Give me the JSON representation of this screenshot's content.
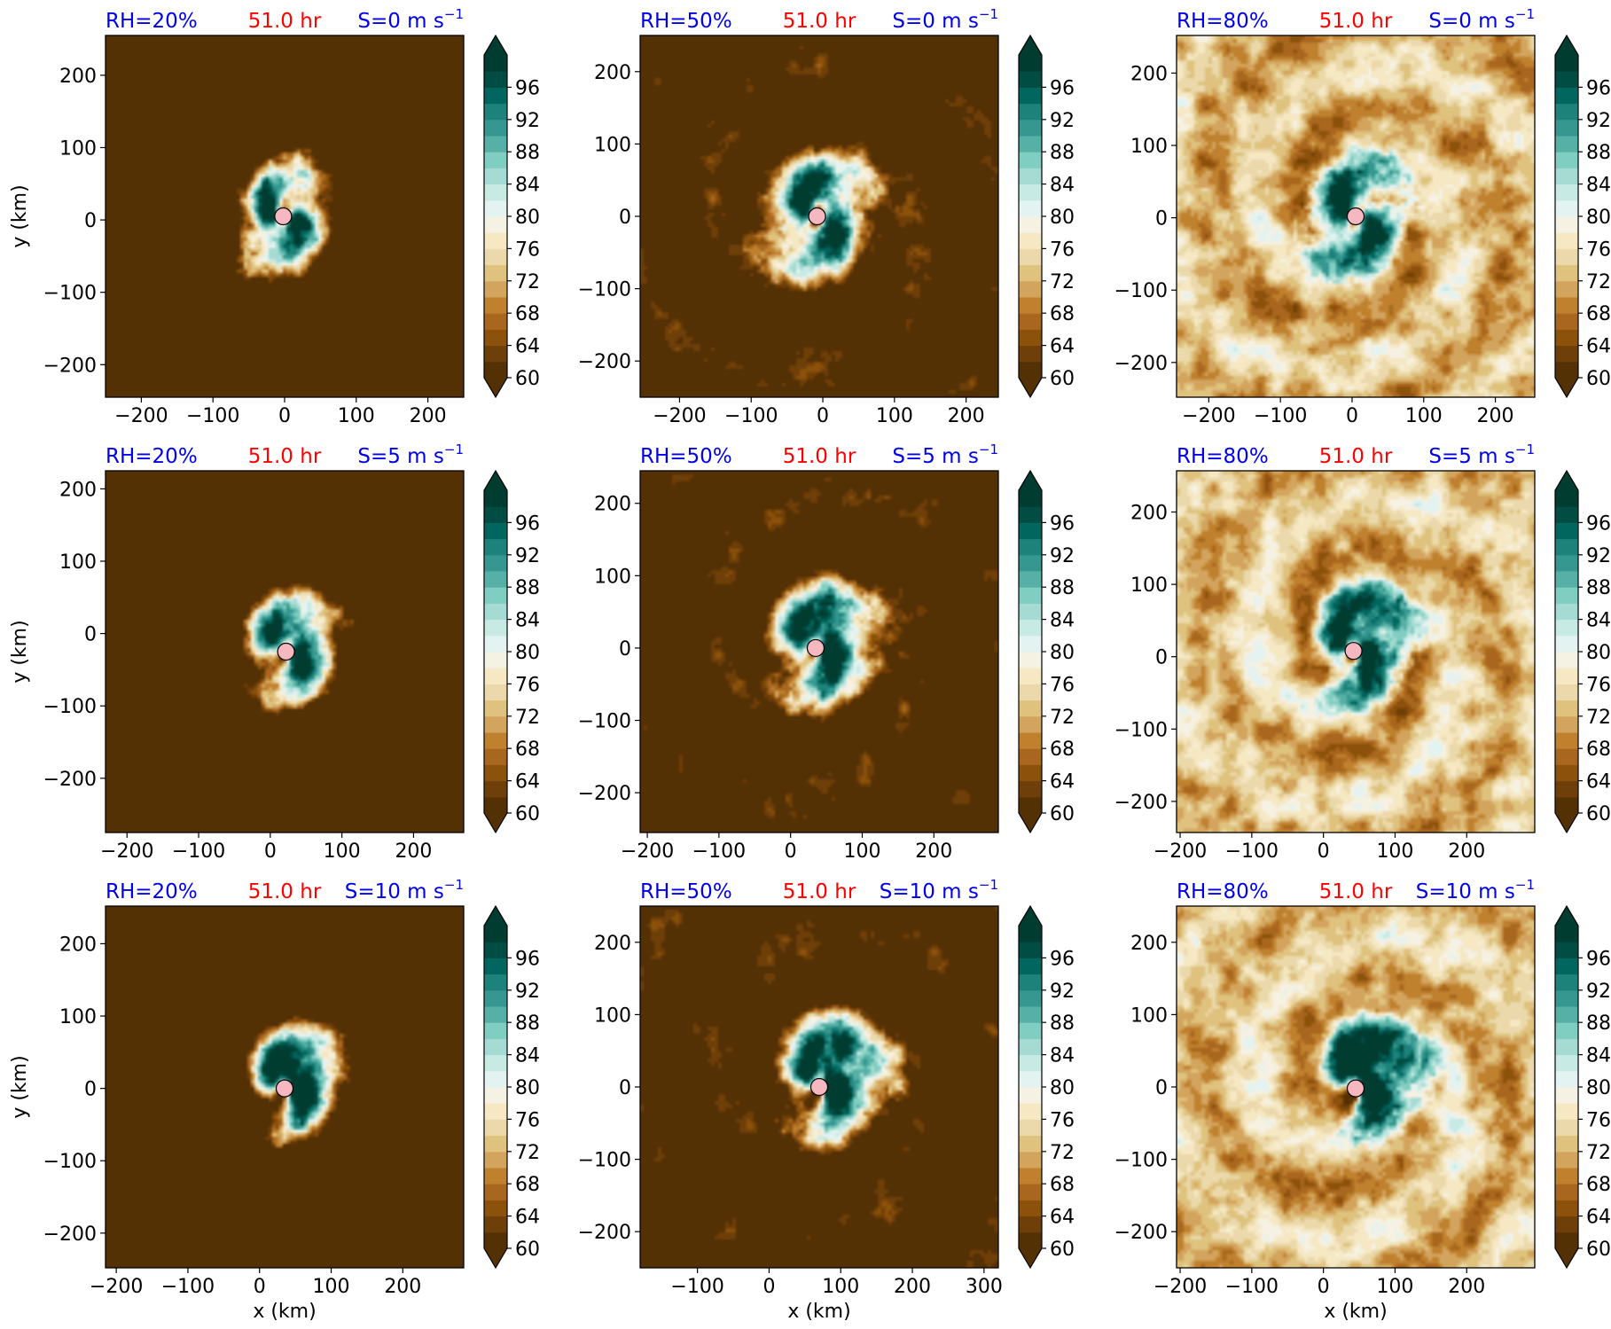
{
  "figure": {
    "xlabel": "x (km)",
    "ylabel": "y (km)",
    "time_label": "51.0 hr",
    "colors": {
      "label_blue": "#0000ee",
      "label_red": "#ff0000",
      "marker_fill": "#f6b8c0",
      "colormap": [
        "#543005",
        "#6e3f08",
        "#8c510a",
        "#a9661f",
        "#bf812d",
        "#d3a45e",
        "#dfc27d",
        "#ebd9ab",
        "#f6e8c3",
        "#f5f1e3",
        "#e3f3f1",
        "#c7eae5",
        "#a5dbd2",
        "#80cdc1",
        "#57b0a6",
        "#35978f",
        "#1d8279",
        "#01665e",
        "#014d44",
        "#003c30"
      ]
    },
    "colorbar": {
      "ticks": [
        "60",
        "64",
        "68",
        "72",
        "76",
        "80",
        "84",
        "88",
        "92",
        "96"
      ],
      "vmin": 60,
      "vmax": 100,
      "extend": "both"
    }
  },
  "chart_data": [
    {
      "type": "heatmap",
      "rh_label": "RH=20%",
      "shear_label": "S=0 m s",
      "shear_exp": "−1",
      "xlim": [
        -250,
        250
      ],
      "ylim": [
        -245,
        255
      ],
      "xticks": [
        "−200",
        "−100",
        "0",
        "100",
        "200"
      ],
      "yticks": [
        "−200",
        "−100",
        "0",
        "100",
        "200"
      ],
      "center": [
        -2,
        5
      ],
      "field": {
        "rh_env": 20,
        "shear": 0
      },
      "show_xlabel": false,
      "show_ylabel": true
    },
    {
      "type": "heatmap",
      "rh_label": "RH=50%",
      "shear_label": "S=0 m s",
      "shear_exp": "−1",
      "xlim": [
        -255,
        245
      ],
      "ylim": [
        -250,
        250
      ],
      "xticks": [
        "−200",
        "−100",
        "0",
        "100",
        "200"
      ],
      "yticks": [
        "−200",
        "−100",
        "0",
        "100",
        "200"
      ],
      "center": [
        -8,
        0
      ],
      "field": {
        "rh_env": 50,
        "shear": 0
      },
      "show_xlabel": false,
      "show_ylabel": false
    },
    {
      "type": "heatmap",
      "rh_label": "RH=80%",
      "shear_label": "S=0 m s",
      "shear_exp": "−1",
      "xlim": [
        -245,
        255
      ],
      "ylim": [
        -248,
        252
      ],
      "xticks": [
        "−200",
        "−100",
        "0",
        "100",
        "200"
      ],
      "yticks": [
        "−200",
        "−100",
        "0",
        "100",
        "200"
      ],
      "center": [
        5,
        2
      ],
      "field": {
        "rh_env": 80,
        "shear": 0
      },
      "show_xlabel": false,
      "show_ylabel": false
    },
    {
      "type": "heatmap",
      "rh_label": "RH=20%",
      "shear_label": "S=5 m s",
      "shear_exp": "−1",
      "xlim": [
        -230,
        270
      ],
      "ylim": [
        -275,
        225
      ],
      "xticks": [
        "−200",
        "−100",
        "0",
        "100",
        "200"
      ],
      "yticks": [
        "−200",
        "−100",
        "0",
        "100",
        "200"
      ],
      "center": [
        22,
        -25
      ],
      "field": {
        "rh_env": 20,
        "shear": 5
      },
      "show_xlabel": false,
      "show_ylabel": true
    },
    {
      "type": "heatmap",
      "rh_label": "RH=50%",
      "shear_label": "S=5 m s",
      "shear_exp": "−1",
      "xlim": [
        -210,
        290
      ],
      "ylim": [
        -255,
        245
      ],
      "xticks": [
        "−200",
        "−100",
        "0",
        "100",
        "200"
      ],
      "yticks": [
        "−200",
        "−100",
        "0",
        "100",
        "200"
      ],
      "center": [
        35,
        0
      ],
      "field": {
        "rh_env": 50,
        "shear": 5
      },
      "show_xlabel": false,
      "show_ylabel": false
    },
    {
      "type": "heatmap",
      "rh_label": "RH=80%",
      "shear_label": "S=5 m s",
      "shear_exp": "−1",
      "xlim": [
        -205,
        295
      ],
      "ylim": [
        -243,
        257
      ],
      "xticks": [
        "−200",
        "−100",
        "0",
        "100",
        "200"
      ],
      "yticks": [
        "−200",
        "−100",
        "0",
        "100",
        "200"
      ],
      "center": [
        42,
        8
      ],
      "field": {
        "rh_env": 80,
        "shear": 5
      },
      "show_xlabel": false,
      "show_ylabel": false
    },
    {
      "type": "heatmap",
      "rh_label": "RH=20%",
      "shear_label": "S=10 m s",
      "shear_exp": "−1",
      "xlim": [
        -215,
        285
      ],
      "ylim": [
        -248,
        252
      ],
      "xticks": [
        "−200",
        "−100",
        "0",
        "100",
        "200"
      ],
      "yticks": [
        "−200",
        "−100",
        "0",
        "100",
        "200"
      ],
      "center": [
        35,
        0
      ],
      "field": {
        "rh_env": 20,
        "shear": 10
      },
      "show_xlabel": true,
      "show_ylabel": true
    },
    {
      "type": "heatmap",
      "rh_label": "RH=50%",
      "shear_label": "S=10 m s",
      "shear_exp": "−1",
      "xlim": [
        -180,
        320
      ],
      "ylim": [
        -250,
        250
      ],
      "xticks": [
        "−100",
        "0",
        "100",
        "200",
        "300"
      ],
      "yticks": [
        "−200",
        "−100",
        "0",
        "100",
        "200"
      ],
      "center": [
        70,
        0
      ],
      "field": {
        "rh_env": 50,
        "shear": 10
      },
      "show_xlabel": true,
      "show_ylabel": false
    },
    {
      "type": "heatmap",
      "rh_label": "RH=80%",
      "shear_label": "S=10 m s",
      "shear_exp": "−1",
      "xlim": [
        -205,
        295
      ],
      "ylim": [
        -250,
        250
      ],
      "xticks": [
        "−200",
        "−100",
        "0",
        "100",
        "200"
      ],
      "yticks": [
        "−200",
        "−100",
        "0",
        "100",
        "200"
      ],
      "center": [
        45,
        -2
      ],
      "field": {
        "rh_env": 80,
        "shear": 10
      },
      "show_xlabel": true,
      "show_ylabel": false
    }
  ]
}
